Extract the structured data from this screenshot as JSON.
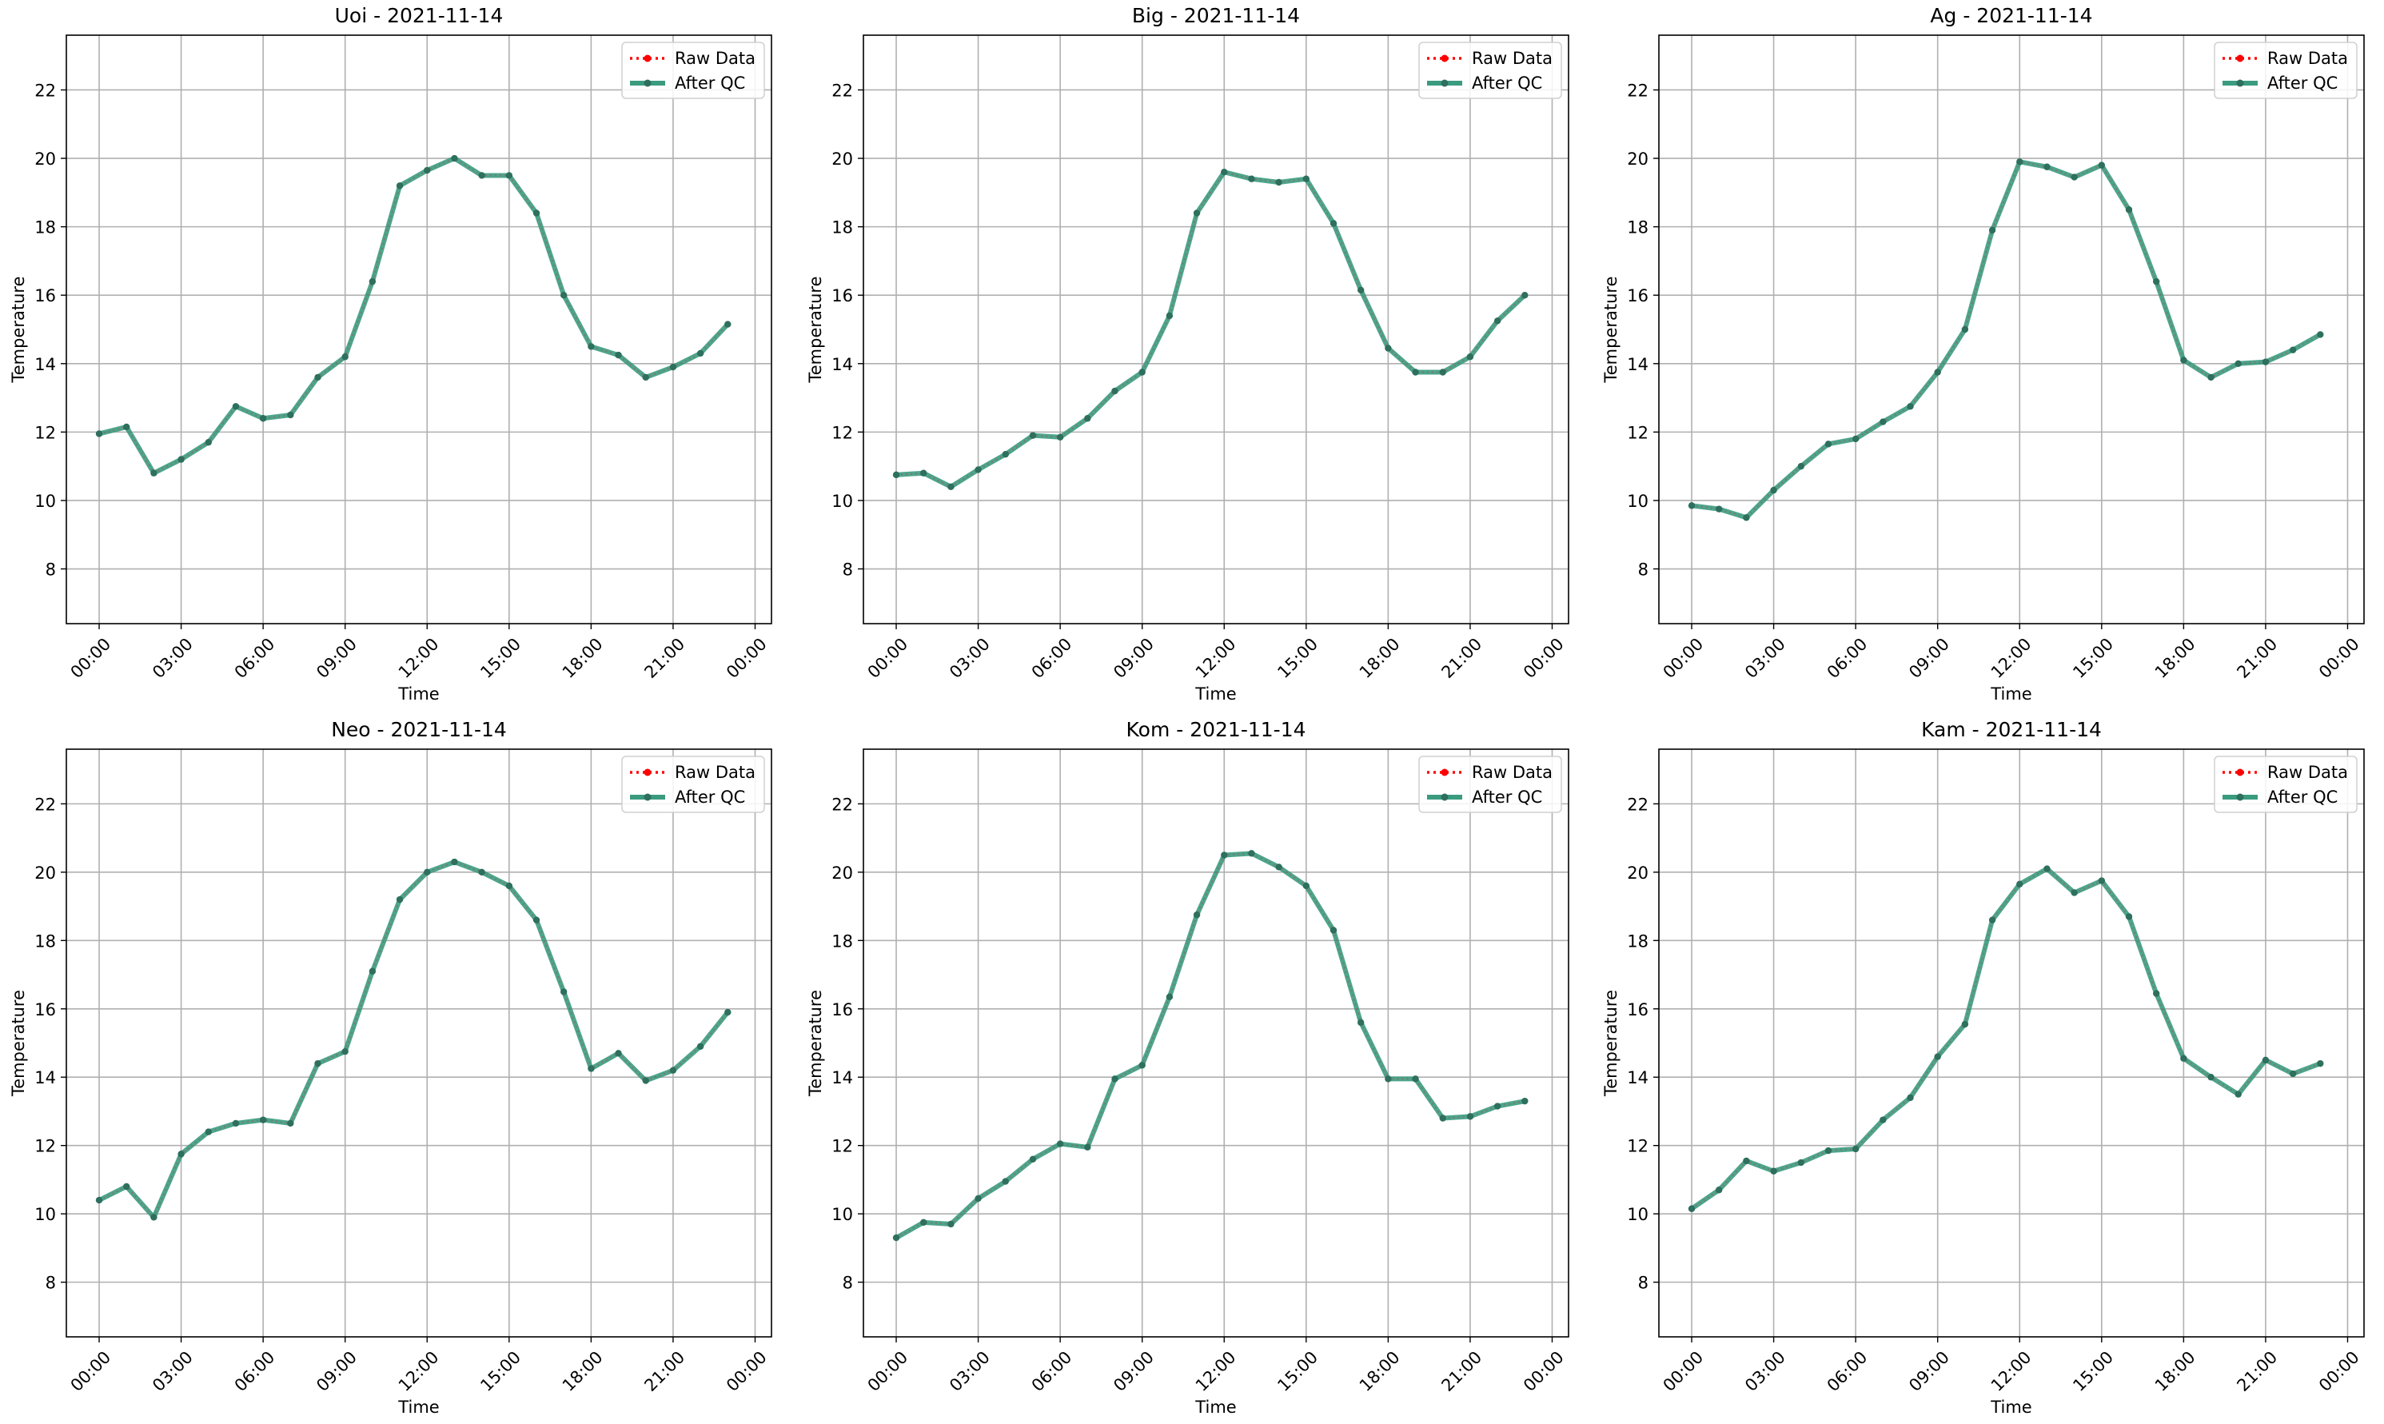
{
  "x_tick_labels": [
    "00:00",
    "03:00",
    "06:00",
    "09:00",
    "12:00",
    "15:00",
    "18:00",
    "21:00",
    "00:00"
  ],
  "colors": {
    "raw": "#ff0000",
    "qc": "#3a9b7f",
    "marker": "#2e6f5e",
    "grid": "#b0b0b0",
    "axis": "#000000"
  },
  "chart_data": [
    {
      "type": "line",
      "title": "Uoi - 2021-11-14",
      "xlabel": "Time",
      "ylabel": "Temperature",
      "x": [
        "00:00",
        "01:00",
        "02:00",
        "03:00",
        "04:00",
        "05:00",
        "06:00",
        "07:00",
        "08:00",
        "09:00",
        "10:00",
        "11:00",
        "12:00",
        "13:00",
        "14:00",
        "15:00",
        "16:00",
        "17:00",
        "18:00",
        "19:00",
        "20:00",
        "21:00",
        "22:00",
        "23:00"
      ],
      "xlim": [
        -1.2,
        24.6
      ],
      "ylim": [
        6.4,
        23.6
      ],
      "y_ticks": [
        8,
        10,
        12,
        14,
        16,
        18,
        20,
        22
      ],
      "grid": true,
      "legend": "top-right",
      "series": [
        {
          "name": "Raw Data",
          "style": "dotted",
          "values": [
            11.95,
            12.15,
            10.8,
            11.2,
            11.7,
            12.75,
            12.4,
            12.5,
            13.6,
            14.2,
            16.4,
            19.2,
            19.65,
            20.0,
            19.5,
            19.5,
            18.4,
            16.0,
            14.5,
            14.25,
            13.6,
            13.9,
            14.3,
            15.15
          ]
        },
        {
          "name": "After QC",
          "style": "solid",
          "values": [
            11.95,
            12.15,
            10.8,
            11.2,
            11.7,
            12.75,
            12.4,
            12.5,
            13.6,
            14.2,
            16.4,
            19.2,
            19.65,
            20.0,
            19.5,
            19.5,
            18.4,
            16.0,
            14.5,
            14.25,
            13.6,
            13.9,
            14.3,
            15.15
          ]
        }
      ]
    },
    {
      "type": "line",
      "title": "Big - 2021-11-14",
      "xlabel": "Time",
      "ylabel": "Temperature",
      "x": [
        "00:00",
        "01:00",
        "02:00",
        "03:00",
        "04:00",
        "05:00",
        "06:00",
        "07:00",
        "08:00",
        "09:00",
        "10:00",
        "11:00",
        "12:00",
        "13:00",
        "14:00",
        "15:00",
        "16:00",
        "17:00",
        "18:00",
        "19:00",
        "20:00",
        "21:00",
        "22:00",
        "23:00"
      ],
      "xlim": [
        -1.2,
        24.6
      ],
      "ylim": [
        6.4,
        23.6
      ],
      "y_ticks": [
        8,
        10,
        12,
        14,
        16,
        18,
        20,
        22
      ],
      "grid": true,
      "legend": "top-right",
      "series": [
        {
          "name": "Raw Data",
          "style": "dotted",
          "values": [
            10.75,
            10.8,
            10.4,
            10.9,
            11.35,
            11.9,
            11.85,
            12.4,
            13.2,
            13.75,
            15.4,
            18.4,
            19.6,
            19.4,
            19.3,
            19.4,
            18.1,
            16.15,
            14.45,
            13.75,
            13.75,
            14.2,
            15.25,
            16.0
          ]
        },
        {
          "name": "After QC",
          "style": "solid",
          "values": [
            10.75,
            10.8,
            10.4,
            10.9,
            11.35,
            11.9,
            11.85,
            12.4,
            13.2,
            13.75,
            15.4,
            18.4,
            19.6,
            19.4,
            19.3,
            19.4,
            18.1,
            16.15,
            14.45,
            13.75,
            13.75,
            14.2,
            15.25,
            16.0
          ]
        }
      ]
    },
    {
      "type": "line",
      "title": "Ag - 2021-11-14",
      "xlabel": "Time",
      "ylabel": "Temperature",
      "x": [
        "00:00",
        "01:00",
        "02:00",
        "03:00",
        "04:00",
        "05:00",
        "06:00",
        "07:00",
        "08:00",
        "09:00",
        "10:00",
        "11:00",
        "12:00",
        "13:00",
        "14:00",
        "15:00",
        "16:00",
        "17:00",
        "18:00",
        "19:00",
        "20:00",
        "21:00",
        "22:00",
        "23:00"
      ],
      "xlim": [
        -1.2,
        24.6
      ],
      "ylim": [
        6.4,
        23.6
      ],
      "y_ticks": [
        8,
        10,
        12,
        14,
        16,
        18,
        20,
        22
      ],
      "grid": true,
      "legend": "top-right",
      "series": [
        {
          "name": "Raw Data",
          "style": "dotted",
          "values": [
            9.85,
            9.75,
            9.5,
            10.3,
            11.0,
            11.65,
            11.8,
            12.3,
            12.75,
            13.75,
            15.0,
            17.9,
            19.9,
            19.75,
            19.45,
            19.8,
            18.5,
            16.4,
            14.1,
            13.6,
            14.0,
            14.05,
            14.4,
            14.85
          ]
        },
        {
          "name": "After QC",
          "style": "solid",
          "values": [
            9.85,
            9.75,
            9.5,
            10.3,
            11.0,
            11.65,
            11.8,
            12.3,
            12.75,
            13.75,
            15.0,
            17.9,
            19.9,
            19.75,
            19.45,
            19.8,
            18.5,
            16.4,
            14.1,
            13.6,
            14.0,
            14.05,
            14.4,
            14.85
          ]
        }
      ]
    },
    {
      "type": "line",
      "title": "Neo - 2021-11-14",
      "xlabel": "Time",
      "ylabel": "Temperature",
      "x": [
        "00:00",
        "01:00",
        "02:00",
        "03:00",
        "04:00",
        "05:00",
        "06:00",
        "07:00",
        "08:00",
        "09:00",
        "10:00",
        "11:00",
        "12:00",
        "13:00",
        "14:00",
        "15:00",
        "16:00",
        "17:00",
        "18:00",
        "19:00",
        "20:00",
        "21:00",
        "22:00",
        "23:00"
      ],
      "xlim": [
        -1.2,
        24.6
      ],
      "ylim": [
        6.4,
        23.6
      ],
      "y_ticks": [
        8,
        10,
        12,
        14,
        16,
        18,
        20,
        22
      ],
      "grid": true,
      "legend": "top-right",
      "series": [
        {
          "name": "Raw Data",
          "style": "dotted",
          "values": [
            10.4,
            10.8,
            9.9,
            11.75,
            12.4,
            12.65,
            12.75,
            12.65,
            14.4,
            14.75,
            17.1,
            19.2,
            20.0,
            20.3,
            20.0,
            19.6,
            18.6,
            16.5,
            14.25,
            14.7,
            13.9,
            14.2,
            14.9,
            15.9
          ]
        },
        {
          "name": "After QC",
          "style": "solid",
          "values": [
            10.4,
            10.8,
            9.9,
            11.75,
            12.4,
            12.65,
            12.75,
            12.65,
            14.4,
            14.75,
            17.1,
            19.2,
            20.0,
            20.3,
            20.0,
            19.6,
            18.6,
            16.5,
            14.25,
            14.7,
            13.9,
            14.2,
            14.9,
            15.9
          ]
        }
      ]
    },
    {
      "type": "line",
      "title": "Kom - 2021-11-14",
      "xlabel": "Time",
      "ylabel": "Temperature",
      "x": [
        "00:00",
        "01:00",
        "02:00",
        "03:00",
        "04:00",
        "05:00",
        "06:00",
        "07:00",
        "08:00",
        "09:00",
        "10:00",
        "11:00",
        "12:00",
        "13:00",
        "14:00",
        "15:00",
        "16:00",
        "17:00",
        "18:00",
        "19:00",
        "20:00",
        "21:00",
        "22:00",
        "23:00"
      ],
      "xlim": [
        -1.2,
        24.6
      ],
      "ylim": [
        6.4,
        23.6
      ],
      "y_ticks": [
        8,
        10,
        12,
        14,
        16,
        18,
        20,
        22
      ],
      "grid": true,
      "legend": "top-right",
      "series": [
        {
          "name": "Raw Data",
          "style": "dotted",
          "values": [
            9.3,
            9.75,
            9.7,
            10.45,
            10.95,
            11.6,
            12.05,
            11.95,
            13.95,
            14.35,
            16.35,
            18.75,
            20.5,
            20.55,
            20.15,
            19.6,
            18.3,
            15.6,
            13.95,
            13.95,
            12.8,
            12.85,
            13.15,
            13.3
          ]
        },
        {
          "name": "After QC",
          "style": "solid",
          "values": [
            9.3,
            9.75,
            9.7,
            10.45,
            10.95,
            11.6,
            12.05,
            11.95,
            13.95,
            14.35,
            16.35,
            18.75,
            20.5,
            20.55,
            20.15,
            19.6,
            18.3,
            15.6,
            13.95,
            13.95,
            12.8,
            12.85,
            13.15,
            13.3
          ]
        }
      ]
    },
    {
      "type": "line",
      "title": "Kam - 2021-11-14",
      "xlabel": "Time",
      "ylabel": "Temperature",
      "x": [
        "00:00",
        "01:00",
        "02:00",
        "03:00",
        "04:00",
        "05:00",
        "06:00",
        "07:00",
        "08:00",
        "09:00",
        "10:00",
        "11:00",
        "12:00",
        "13:00",
        "14:00",
        "15:00",
        "16:00",
        "17:00",
        "18:00",
        "19:00",
        "20:00",
        "21:00",
        "22:00",
        "23:00"
      ],
      "xlim": [
        -1.2,
        24.6
      ],
      "ylim": [
        6.4,
        23.6
      ],
      "y_ticks": [
        8,
        10,
        12,
        14,
        16,
        18,
        20,
        22
      ],
      "grid": true,
      "legend": "top-right",
      "series": [
        {
          "name": "Raw Data",
          "style": "dotted",
          "values": [
            10.15,
            10.7,
            11.55,
            11.25,
            11.5,
            11.85,
            11.9,
            12.75,
            13.4,
            14.6,
            15.55,
            18.6,
            19.65,
            20.1,
            19.4,
            19.75,
            18.7,
            16.45,
            14.55,
            14.0,
            13.5,
            14.5,
            14.1,
            14.4
          ]
        },
        {
          "name": "After QC",
          "style": "solid",
          "values": [
            10.15,
            10.7,
            11.55,
            11.25,
            11.5,
            11.85,
            11.9,
            12.75,
            13.4,
            14.6,
            15.55,
            18.6,
            19.65,
            20.1,
            19.4,
            19.75,
            18.7,
            16.45,
            14.55,
            14.0,
            13.5,
            14.5,
            14.1,
            14.4
          ]
        }
      ]
    }
  ]
}
